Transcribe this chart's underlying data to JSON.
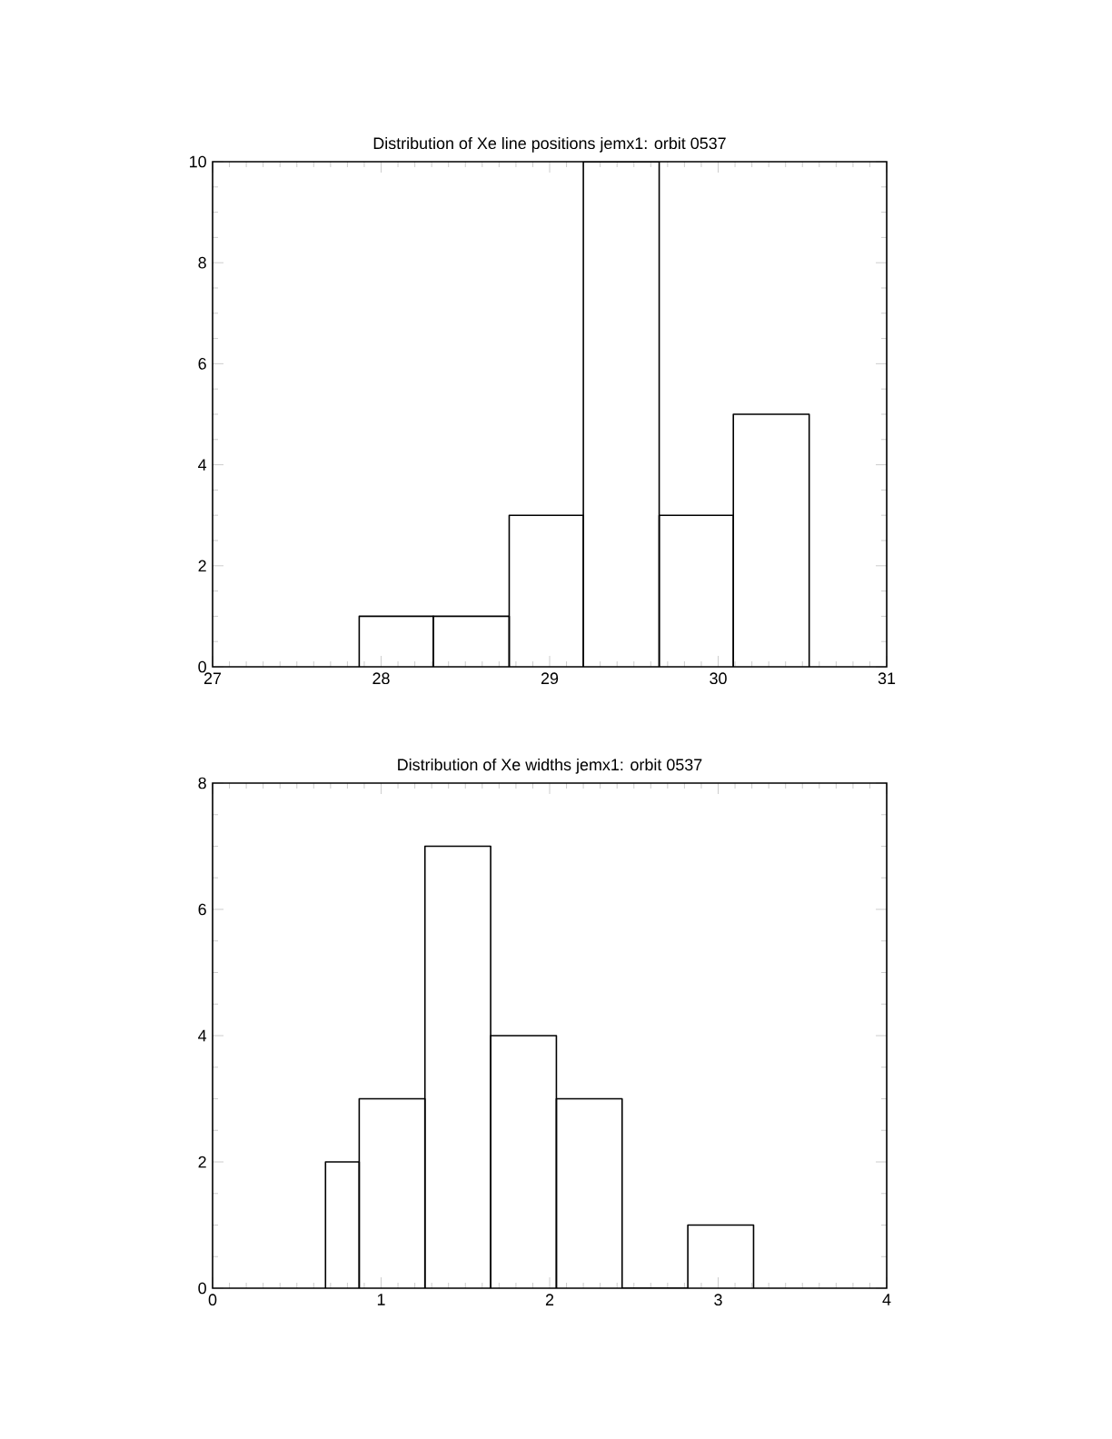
{
  "chart_data": [
    {
      "type": "histogram",
      "title": "Distribution of Xe line positions jemx1: orbit 0537",
      "bins": [
        27.87,
        28.31,
        28.76,
        29.2,
        29.65,
        30.09,
        30.54
      ],
      "values": [
        1,
        1,
        3,
        10,
        3,
        5
      ],
      "color": "#000000",
      "xlim": [
        27,
        31
      ],
      "ylim": [
        0,
        10
      ],
      "xticks": [
        27,
        28,
        29,
        30,
        31
      ],
      "yticks": [
        0,
        2,
        4,
        6,
        8,
        10
      ]
    },
    {
      "type": "histogram",
      "title": "Distribution of Xe widths jemx1: orbit 0537",
      "bins": [
        0.67,
        0.87,
        1.26,
        1.65,
        2.04,
        2.43,
        2.82,
        3.21
      ],
      "values": [
        2,
        3,
        7,
        4,
        3,
        0,
        1
      ],
      "color": "#000000",
      "xlim": [
        0,
        4
      ],
      "ylim": [
        0,
        8
      ],
      "xticks": [
        0,
        1,
        2,
        3,
        4
      ],
      "yticks": [
        0,
        2,
        4,
        6,
        8
      ]
    }
  ]
}
